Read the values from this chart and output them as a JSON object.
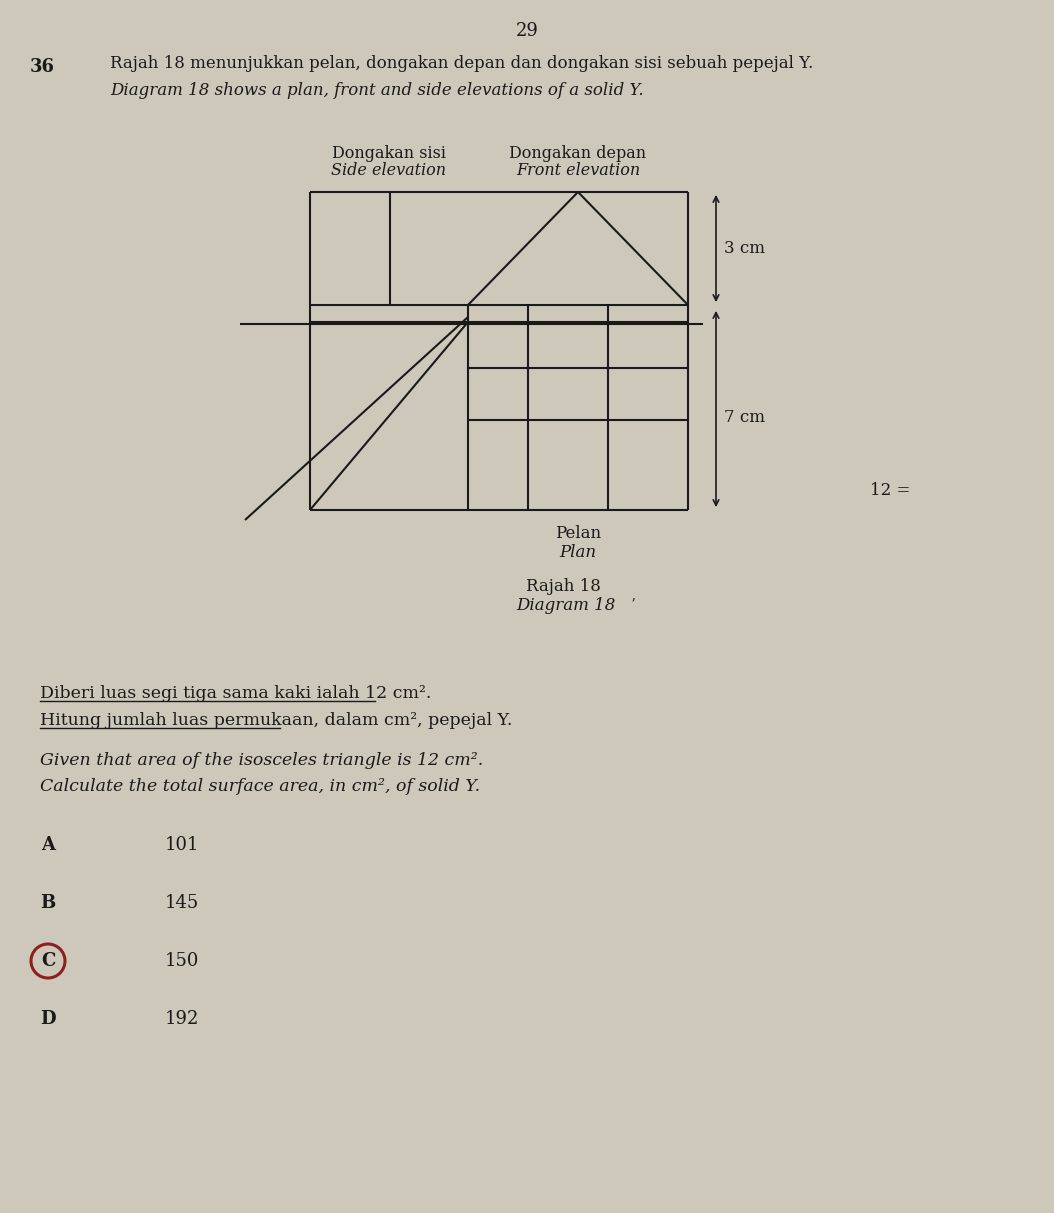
{
  "page_number": "29",
  "question_number": "36",
  "question_text_malay": "Rajah 18 menunjukkan pelan, dongakan depan dan dongakan sisi sebuah pepejal Y.",
  "question_text_english": "Diagram 18 shows a plan, front and side elevations of a solid Y.",
  "side_elevation_label_malay": "Dongakan sisi",
  "side_elevation_label_english": "Side elevation",
  "front_elevation_label_malay": "Dongakan depan",
  "front_elevation_label_english": "Front elevation",
  "plan_label_malay": "Pelan",
  "plan_label_english": "Plan",
  "diagram_label_malay": "Rajah 18",
  "diagram_label_english": "Diagram 18",
  "dim_3cm": "3 cm",
  "dim_7cm": "7 cm",
  "given_text_malay": "Diberi luas segi tiga sama kaki ialah 12 cm².",
  "given_text_malay2": "Hitung jumlah luas permukaan, dalam cm², pepejal Y.",
  "given_text_english": "Given that area of the isosceles triangle is 12 cm².",
  "given_text_english2": "Calculate the total surface area, in cm², of solid Y.",
  "options": [
    "A",
    "B",
    "C",
    "D"
  ],
  "values": [
    "101",
    "145",
    "150",
    "192"
  ],
  "circled_option": "C",
  "background_color": "#cec8ba",
  "text_color": "#1a1a1a",
  "line_color": "#1a1a1a",
  "note_right": "12 ="
}
